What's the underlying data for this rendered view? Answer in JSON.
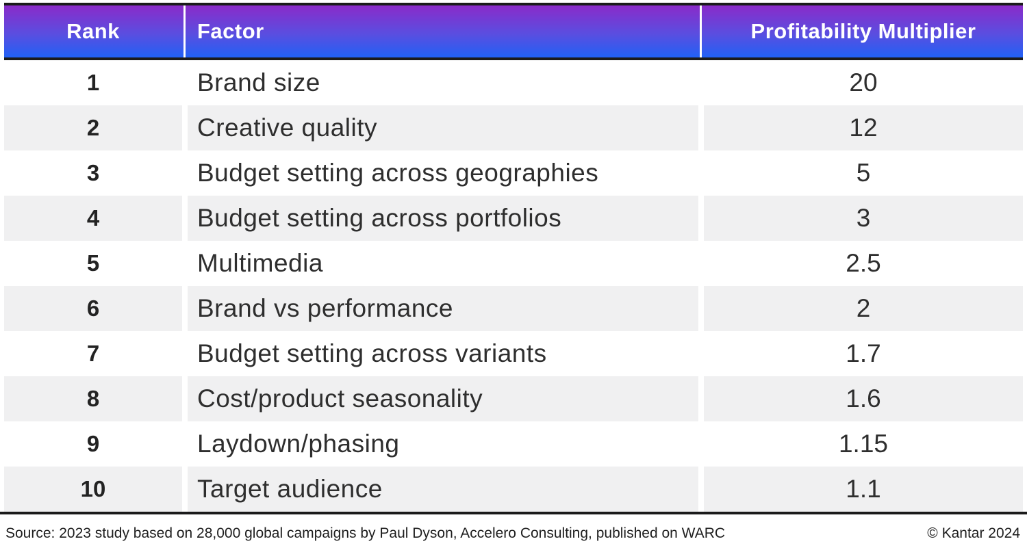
{
  "table": {
    "columns": [
      {
        "label": "Rank"
      },
      {
        "label": "Factor"
      },
      {
        "label": "Profitability Multiplier"
      }
    ],
    "rows": [
      {
        "rank": "1",
        "factor": "Brand size",
        "multiplier": "20"
      },
      {
        "rank": "2",
        "factor": "Creative quality",
        "multiplier": "12"
      },
      {
        "rank": "3",
        "factor": "Budget setting across geographies",
        "multiplier": "5"
      },
      {
        "rank": "4",
        "factor": "Budget setting across portfolios",
        "multiplier": "3"
      },
      {
        "rank": "5",
        "factor": "Multimedia",
        "multiplier": "2.5"
      },
      {
        "rank": "6",
        "factor": "Brand vs performance",
        "multiplier": "2"
      },
      {
        "rank": "7",
        "factor": "Budget setting across variants",
        "multiplier": "1.7"
      },
      {
        "rank": "8",
        "factor": "Cost/product seasonality",
        "multiplier": "1.6"
      },
      {
        "rank": "9",
        "factor": "Laydown/phasing",
        "multiplier": "1.15"
      },
      {
        "rank": "10",
        "factor": "Target audience",
        "multiplier": "1.1"
      }
    ]
  },
  "footer": {
    "source": "Source: 2023 study based on 28,000 global campaigns by Paul Dyson, Accelero Consulting, published on WARC",
    "copyright": "© Kantar 2024"
  },
  "colors": {
    "header_gradient_top": "#8a2bc9",
    "header_gradient_bottom": "#2161f5",
    "header_text": "#ffffff",
    "row_alt_background": "#f0f0f1",
    "border": "#1b1b1b",
    "body_text": "#2e2e2e"
  },
  "chart_data": {
    "type": "table",
    "title": "Profitability Multiplier by Factor",
    "columns": [
      "Rank",
      "Factor",
      "Profitability Multiplier"
    ],
    "rows": [
      [
        1,
        "Brand size",
        20
      ],
      [
        2,
        "Creative quality",
        12
      ],
      [
        3,
        "Budget setting across geographies",
        5
      ],
      [
        4,
        "Budget setting across portfolios",
        3
      ],
      [
        5,
        "Multimedia",
        2.5
      ],
      [
        6,
        "Brand vs performance",
        2
      ],
      [
        7,
        "Budget setting across variants",
        1.7
      ],
      [
        8,
        "Cost/product seasonality",
        1.6
      ],
      [
        9,
        "Laydown/phasing",
        1.15
      ],
      [
        10,
        "Target audience",
        1.1
      ]
    ],
    "source_note": "Source: 2023 study based on 28,000 global campaigns by Paul Dyson, Accelero Consulting, published on WARC",
    "attribution": "© Kantar 2024"
  }
}
